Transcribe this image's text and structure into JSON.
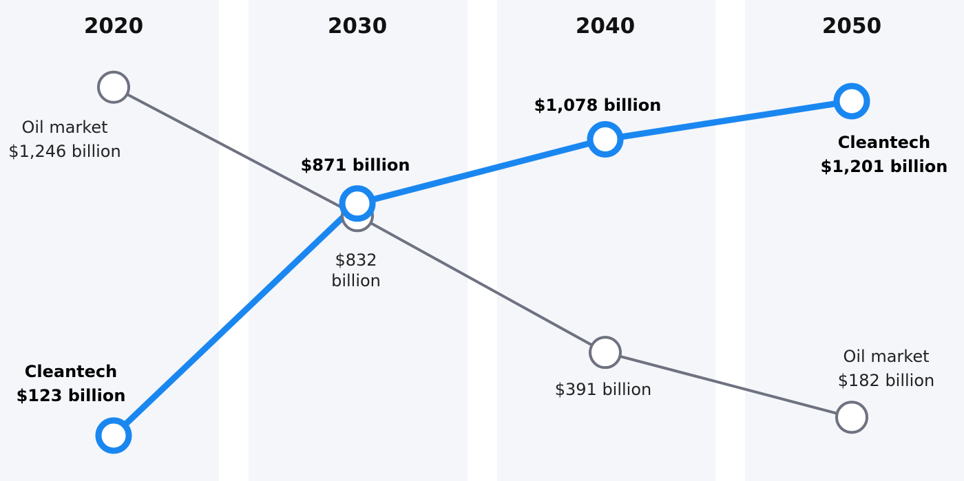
{
  "chart_data": {
    "type": "line",
    "title": "",
    "categories": [
      "2020",
      "2030",
      "2040",
      "2050"
    ],
    "ylabel": "",
    "series": [
      {
        "name": "Oil market",
        "values": [
          1246,
          832,
          391,
          182
        ],
        "color": "#6e7280",
        "labels": {
          "p0": [
            "Oil market",
            "$1,246 billion"
          ],
          "p1": [
            "$832",
            "billion"
          ],
          "p2": [
            "$391 billion"
          ],
          "p3": [
            "Oil market",
            "$182 billion"
          ]
        }
      },
      {
        "name": "Cleantech",
        "values": [
          123,
          871,
          1078,
          1201
        ],
        "color": "#1a87f0",
        "labels": {
          "p0": [
            "Cleantech",
            "$123 billion"
          ],
          "p1": [
            "$871 billion"
          ],
          "p2": [
            "$1,078 billion"
          ],
          "p3": [
            "Cleantech",
            "$1,201 billion"
          ]
        }
      }
    ],
    "column_bg_color": "#f4f6fa",
    "grid": false
  }
}
